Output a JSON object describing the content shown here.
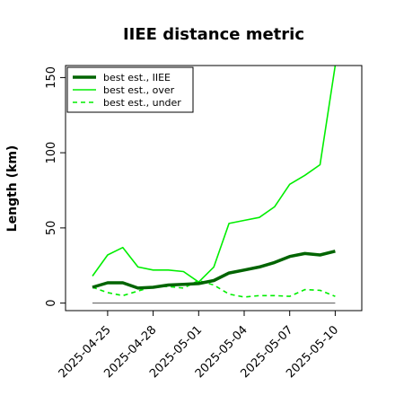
{
  "chart_data": {
    "type": "line",
    "title": "IIEE distance metric",
    "ylabel": "Length (km)",
    "xlabel": "",
    "ylim": [
      -5,
      158
    ],
    "yticks": [
      0,
      50,
      100,
      150
    ],
    "x": [
      "2025-04-24",
      "2025-04-25",
      "2025-04-26",
      "2025-04-27",
      "2025-04-28",
      "2025-04-29",
      "2025-04-30",
      "2025-05-01",
      "2025-05-02",
      "2025-05-03",
      "2025-05-04",
      "2025-05-05",
      "2025-05-06",
      "2025-05-07",
      "2025-05-08",
      "2025-05-09",
      "2025-05-10"
    ],
    "xticks": [
      "2025-04-25",
      "2025-04-28",
      "2025-05-01",
      "2025-05-04",
      "2025-05-07",
      "2025-05-10"
    ],
    "reference_line": 0,
    "legend_position": "top-left",
    "series": [
      {
        "name": "best est., IIEE",
        "color": "#006400",
        "style": "solid",
        "weight": "thick",
        "values": [
          10.5,
          13.5,
          13.5,
          10,
          10.5,
          12,
          12.5,
          13,
          15,
          20,
          22,
          24,
          27,
          31,
          33,
          32,
          34.5
        ]
      },
      {
        "name": "best est., over",
        "color": "#00ee00",
        "style": "solid",
        "weight": "thin",
        "values": [
          18,
          32,
          37,
          24,
          22,
          22,
          21,
          14,
          24,
          53,
          55,
          57,
          64,
          79,
          85,
          92,
          158
        ]
      },
      {
        "name": "best est., under",
        "color": "#00ee00",
        "style": "dashed",
        "weight": "thin",
        "values": [
          10.5,
          7,
          5,
          8,
          11,
          11,
          10,
          15,
          12,
          6,
          4,
          5,
          5,
          4.5,
          9,
          8.5,
          4.5
        ]
      }
    ]
  }
}
